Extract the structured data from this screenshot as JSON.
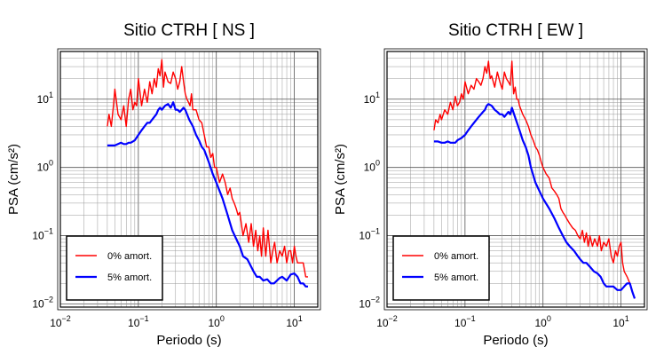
{
  "chart_data": [
    {
      "type": "line",
      "title": "Sitio CTRH [ NS ]",
      "xlabel": "Periodo (s)",
      "ylabel": "PSA (cm/s²)",
      "xscale": "log",
      "yscale": "log",
      "xlim": [
        0.01,
        20
      ],
      "ylim": [
        0.009,
        50
      ],
      "xticks": [
        {
          "value": 0.01,
          "base": "10",
          "exp": "−2"
        },
        {
          "value": 0.1,
          "base": "10",
          "exp": "−1"
        },
        {
          "value": 1,
          "base": "10",
          "exp": "0"
        },
        {
          "value": 10,
          "base": "10",
          "exp": "1"
        }
      ],
      "yticks": [
        {
          "value": 0.01,
          "base": "10",
          "exp": "−2"
        },
        {
          "value": 0.1,
          "base": "10",
          "exp": "−1"
        },
        {
          "value": 1,
          "base": "10",
          "exp": "0"
        },
        {
          "value": 10,
          "base": "10",
          "exp": "1"
        }
      ],
      "grid": true,
      "legend_position": "bottom-left",
      "series": [
        {
          "name": "0% amort.",
          "color": "#ff0000",
          "x": [
            0.04,
            0.042,
            0.045,
            0.048,
            0.05,
            0.055,
            0.06,
            0.065,
            0.07,
            0.075,
            0.08,
            0.085,
            0.09,
            0.095,
            0.1,
            0.11,
            0.12,
            0.13,
            0.14,
            0.15,
            0.16,
            0.17,
            0.18,
            0.19,
            0.2,
            0.21,
            0.22,
            0.24,
            0.26,
            0.28,
            0.3,
            0.32,
            0.34,
            0.36,
            0.38,
            0.4,
            0.42,
            0.44,
            0.46,
            0.48,
            0.5,
            0.55,
            0.6,
            0.65,
            0.7,
            0.75,
            0.8,
            0.85,
            0.9,
            0.95,
            1.0,
            1.1,
            1.2,
            1.3,
            1.4,
            1.5,
            1.6,
            1.7,
            1.8,
            1.9,
            2.0,
            2.2,
            2.4,
            2.6,
            2.8,
            3.0,
            3.2,
            3.4,
            3.6,
            3.8,
            4.0,
            4.3,
            4.6,
            5.0,
            5.3,
            5.6,
            6.0,
            6.5,
            7.0,
            7.5,
            8.0,
            8.5,
            9.0,
            9.5,
            10,
            10.5,
            11,
            12,
            13,
            14,
            15
          ],
          "y": [
            4.0,
            6.0,
            4.0,
            8.0,
            14.0,
            6.0,
            5.0,
            8.0,
            4.0,
            10.0,
            14.0,
            7.0,
            9.0,
            8.0,
            20.0,
            8.0,
            14.0,
            9.0,
            18.0,
            12.0,
            20.0,
            15.0,
            28.0,
            22.0,
            38.0,
            15.0,
            25.0,
            18.0,
            17.0,
            25.0,
            20.0,
            14.0,
            18.0,
            30.0,
            18.0,
            12.0,
            10.0,
            9.0,
            8.0,
            12.0,
            7.0,
            7.0,
            5.0,
            4.5,
            3.0,
            2.0,
            2.0,
            1.4,
            1.6,
            1.0,
            1.0,
            0.6,
            0.8,
            0.6,
            0.4,
            0.5,
            0.35,
            0.3,
            0.25,
            0.2,
            0.22,
            0.1,
            0.15,
            0.08,
            0.15,
            0.07,
            0.12,
            0.06,
            0.1,
            0.05,
            0.13,
            0.05,
            0.12,
            0.04,
            0.06,
            0.08,
            0.04,
            0.06,
            0.05,
            0.07,
            0.04,
            0.06,
            0.06,
            0.04,
            0.07,
            0.05,
            0.04,
            0.04,
            0.04,
            0.025,
            0.025
          ]
        },
        {
          "name": "5% amort.",
          "color": "#0000ff",
          "x": [
            0.04,
            0.045,
            0.05,
            0.055,
            0.06,
            0.065,
            0.07,
            0.075,
            0.08,
            0.085,
            0.09,
            0.1,
            0.11,
            0.12,
            0.13,
            0.14,
            0.15,
            0.16,
            0.17,
            0.18,
            0.19,
            0.2,
            0.22,
            0.24,
            0.26,
            0.28,
            0.3,
            0.32,
            0.34,
            0.36,
            0.38,
            0.4,
            0.45,
            0.5,
            0.55,
            0.6,
            0.65,
            0.7,
            0.8,
            0.9,
            1.0,
            1.2,
            1.4,
            1.6,
            1.8,
            2.0,
            2.2,
            2.5,
            2.8,
            3.0,
            3.3,
            3.6,
            4.0,
            4.5,
            5.0,
            5.5,
            6.0,
            6.5,
            7.0,
            8.0,
            9.0,
            10,
            11,
            12,
            13,
            14,
            15
          ],
          "y": [
            2.1,
            2.1,
            2.1,
            2.2,
            2.3,
            2.2,
            2.2,
            2.3,
            2.3,
            2.4,
            2.5,
            3.0,
            3.5,
            4.0,
            4.5,
            4.5,
            5.0,
            5.5,
            6.0,
            7.0,
            7.5,
            7.0,
            8.0,
            8.5,
            7.5,
            9.0,
            7.0,
            7.0,
            6.5,
            7.0,
            7.5,
            7.0,
            5.0,
            4.0,
            3.0,
            2.5,
            2.0,
            1.8,
            1.2,
            0.8,
            0.6,
            0.35,
            0.2,
            0.12,
            0.09,
            0.07,
            0.05,
            0.045,
            0.035,
            0.03,
            0.025,
            0.025,
            0.022,
            0.023,
            0.02,
            0.02,
            0.022,
            0.024,
            0.025,
            0.022,
            0.027,
            0.028,
            0.025,
            0.02,
            0.02,
            0.018,
            0.018
          ]
        }
      ]
    },
    {
      "type": "line",
      "title": "Sitio CTRH [ EW ]",
      "xlabel": "Periodo (s)",
      "ylabel": "PSA (cm/s²)",
      "xscale": "log",
      "yscale": "log",
      "xlim": [
        0.01,
        20
      ],
      "ylim": [
        0.009,
        50
      ],
      "xticks": [
        {
          "value": 0.01,
          "base": "10",
          "exp": "−2"
        },
        {
          "value": 0.1,
          "base": "10",
          "exp": "−1"
        },
        {
          "value": 1,
          "base": "10",
          "exp": "0"
        },
        {
          "value": 10,
          "base": "10",
          "exp": "1"
        }
      ],
      "yticks": [
        {
          "value": 0.01,
          "base": "10",
          "exp": "−2"
        },
        {
          "value": 0.1,
          "base": "10",
          "exp": "−1"
        },
        {
          "value": 1,
          "base": "10",
          "exp": "0"
        },
        {
          "value": 10,
          "base": "10",
          "exp": "1"
        }
      ],
      "grid": true,
      "legend_position": "bottom-left",
      "series": [
        {
          "name": "0% amort.",
          "color": "#ff0000",
          "x": [
            0.04,
            0.042,
            0.045,
            0.048,
            0.05,
            0.055,
            0.06,
            0.065,
            0.07,
            0.075,
            0.08,
            0.085,
            0.09,
            0.095,
            0.1,
            0.11,
            0.12,
            0.13,
            0.14,
            0.15,
            0.16,
            0.17,
            0.18,
            0.19,
            0.2,
            0.21,
            0.22,
            0.24,
            0.26,
            0.28,
            0.3,
            0.32,
            0.34,
            0.36,
            0.38,
            0.4,
            0.42,
            0.44,
            0.46,
            0.48,
            0.5,
            0.55,
            0.6,
            0.65,
            0.7,
            0.75,
            0.8,
            0.85,
            0.9,
            0.95,
            1.0,
            1.1,
            1.2,
            1.3,
            1.4,
            1.5,
            1.6,
            1.7,
            1.8,
            1.9,
            2.0,
            2.2,
            2.4,
            2.6,
            2.8,
            3.0,
            3.2,
            3.4,
            3.6,
            3.8,
            4.0,
            4.3,
            4.6,
            5.0,
            5.3,
            5.6,
            6.0,
            6.5,
            7.0,
            7.5,
            8.0,
            8.5,
            9.0,
            9.5,
            10,
            10.5,
            11,
            12,
            13,
            14,
            15
          ],
          "y": [
            3.5,
            5.0,
            4.5,
            6.0,
            5.0,
            7.0,
            6.0,
            9.0,
            7.0,
            11.0,
            8.0,
            9.0,
            12.0,
            10.0,
            18.0,
            12.0,
            16.0,
            14.0,
            20.0,
            18.0,
            16.0,
            20.0,
            30.0,
            24.0,
            36.0,
            20.0,
            22.0,
            15.0,
            25.0,
            18.0,
            14.0,
            25.0,
            20.0,
            18.0,
            16.0,
            36.0,
            12.0,
            15.0,
            10.0,
            10.0,
            8.0,
            6.0,
            5.0,
            4.0,
            3.0,
            2.5,
            2.0,
            1.8,
            1.5,
            1.2,
            1.0,
            0.8,
            0.7,
            0.5,
            0.45,
            0.4,
            0.35,
            0.25,
            0.22,
            0.2,
            0.18,
            0.15,
            0.13,
            0.12,
            0.1,
            0.09,
            0.12,
            0.08,
            0.11,
            0.07,
            0.1,
            0.07,
            0.09,
            0.07,
            0.1,
            0.06,
            0.08,
            0.07,
            0.09,
            0.05,
            0.04,
            0.06,
            0.05,
            0.07,
            0.08,
            0.04,
            0.03,
            0.025,
            0.02,
            0.015,
            0.012
          ]
        },
        {
          "name": "5% amort.",
          "color": "#0000ff",
          "x": [
            0.04,
            0.045,
            0.05,
            0.055,
            0.06,
            0.065,
            0.07,
            0.075,
            0.08,
            0.085,
            0.09,
            0.1,
            0.11,
            0.12,
            0.13,
            0.14,
            0.15,
            0.16,
            0.17,
            0.18,
            0.19,
            0.2,
            0.22,
            0.24,
            0.26,
            0.28,
            0.3,
            0.32,
            0.34,
            0.36,
            0.38,
            0.4,
            0.45,
            0.5,
            0.55,
            0.6,
            0.65,
            0.7,
            0.8,
            0.9,
            1.0,
            1.2,
            1.4,
            1.6,
            1.8,
            2.0,
            2.2,
            2.5,
            2.8,
            3.0,
            3.3,
            3.6,
            4.0,
            4.5,
            5.0,
            5.5,
            6.0,
            6.5,
            7.0,
            8.0,
            9.0,
            10,
            11,
            12,
            13,
            14,
            15
          ],
          "y": [
            2.4,
            2.4,
            2.3,
            2.3,
            2.4,
            2.3,
            2.3,
            2.3,
            2.5,
            2.6,
            2.7,
            3.0,
            3.5,
            4.0,
            4.5,
            5.0,
            5.5,
            6.0,
            6.5,
            7.0,
            8.0,
            8.5,
            8.0,
            7.0,
            6.5,
            6.0,
            6.0,
            5.5,
            6.0,
            6.5,
            6.0,
            7.5,
            5.0,
            3.5,
            2.5,
            2.0,
            1.5,
            1.0,
            0.6,
            0.45,
            0.35,
            0.25,
            0.18,
            0.13,
            0.1,
            0.08,
            0.07,
            0.06,
            0.05,
            0.045,
            0.04,
            0.04,
            0.035,
            0.03,
            0.028,
            0.025,
            0.02,
            0.018,
            0.018,
            0.018,
            0.016,
            0.016,
            0.018,
            0.02,
            0.02,
            0.015,
            0.012
          ]
        }
      ]
    }
  ]
}
